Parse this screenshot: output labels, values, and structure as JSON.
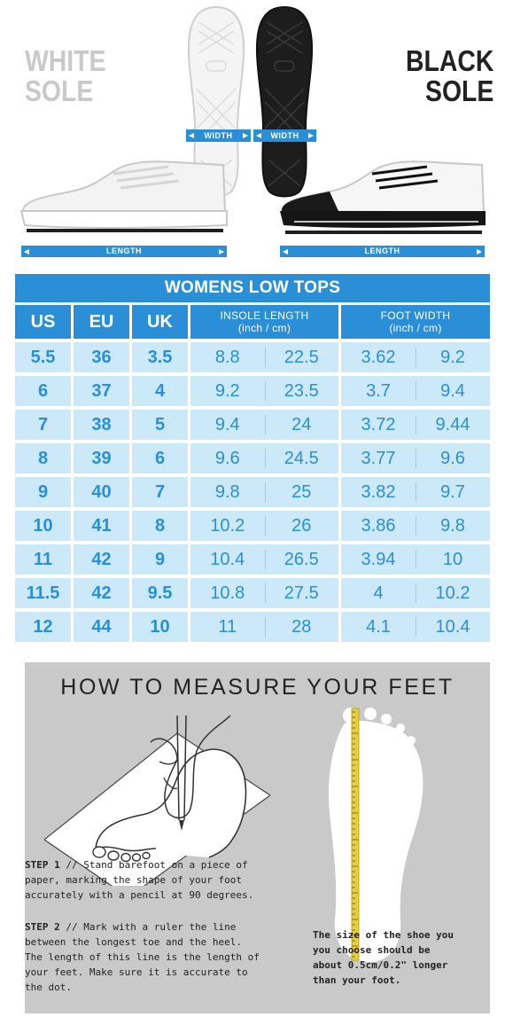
{
  "labels": {
    "white_sole": [
      "WHITE",
      "SOLE"
    ],
    "black_sole": [
      "BLACK",
      "SOLE"
    ],
    "width": "WIDTH",
    "length": "LENGTH"
  },
  "colors": {
    "accent": "#2a8fd6",
    "cell_bg": "#cbe9f8",
    "panel_bg": "#c9c9c9"
  },
  "table": {
    "title": "WOMENS LOW TOPS",
    "headers": {
      "us": "US",
      "eu": "EU",
      "uk": "UK",
      "insole": "INSOLE LENGTH",
      "insole_unit": "(inch / cm)",
      "foot": "FOOT WIDTH",
      "foot_unit": "(inch / cm)"
    },
    "rows": [
      [
        "5.5",
        "36",
        "3.5",
        "8.8",
        "22.5",
        "3.62",
        "9.2"
      ],
      [
        "6",
        "37",
        "4",
        "9.2",
        "23.5",
        "3.7",
        "9.4"
      ],
      [
        "7",
        "38",
        "5",
        "9.4",
        "24",
        "3.72",
        "9.44"
      ],
      [
        "8",
        "39",
        "6",
        "9.6",
        "24.5",
        "3.77",
        "9.6"
      ],
      [
        "9",
        "40",
        "7",
        "9.8",
        "25",
        "3.82",
        "9.7"
      ],
      [
        "10",
        "41",
        "8",
        "10.2",
        "26",
        "3.86",
        "9.8"
      ],
      [
        "11",
        "42",
        "9",
        "10.4",
        "26.5",
        "3.94",
        "10"
      ],
      [
        "11.5",
        "42",
        "9.5",
        "10.8",
        "27.5",
        "4",
        "10.2"
      ],
      [
        "12",
        "44",
        "10",
        "11",
        "28",
        "4.1",
        "10.4"
      ]
    ]
  },
  "measure": {
    "title": "HOW TO MEASURE YOUR FEET",
    "step1_label": "STEP 1",
    "step1_lines": [
      "// Stand barefoot on a piece of",
      "paper, marking the shape of your foot",
      "accurately with a pencil at 90 degrees."
    ],
    "step2_label": "STEP 2",
    "step2_lines": [
      "// Mark with a ruler the line",
      "between the longest toe and the heel.",
      "The length of this line is the length of",
      "your feet. Make sure it is accurate to",
      "the dot."
    ],
    "note_lines": [
      "The size of the shoe you",
      "you choose should be",
      "about 0.5cm/0.2\" longer",
      "than your foot."
    ]
  }
}
